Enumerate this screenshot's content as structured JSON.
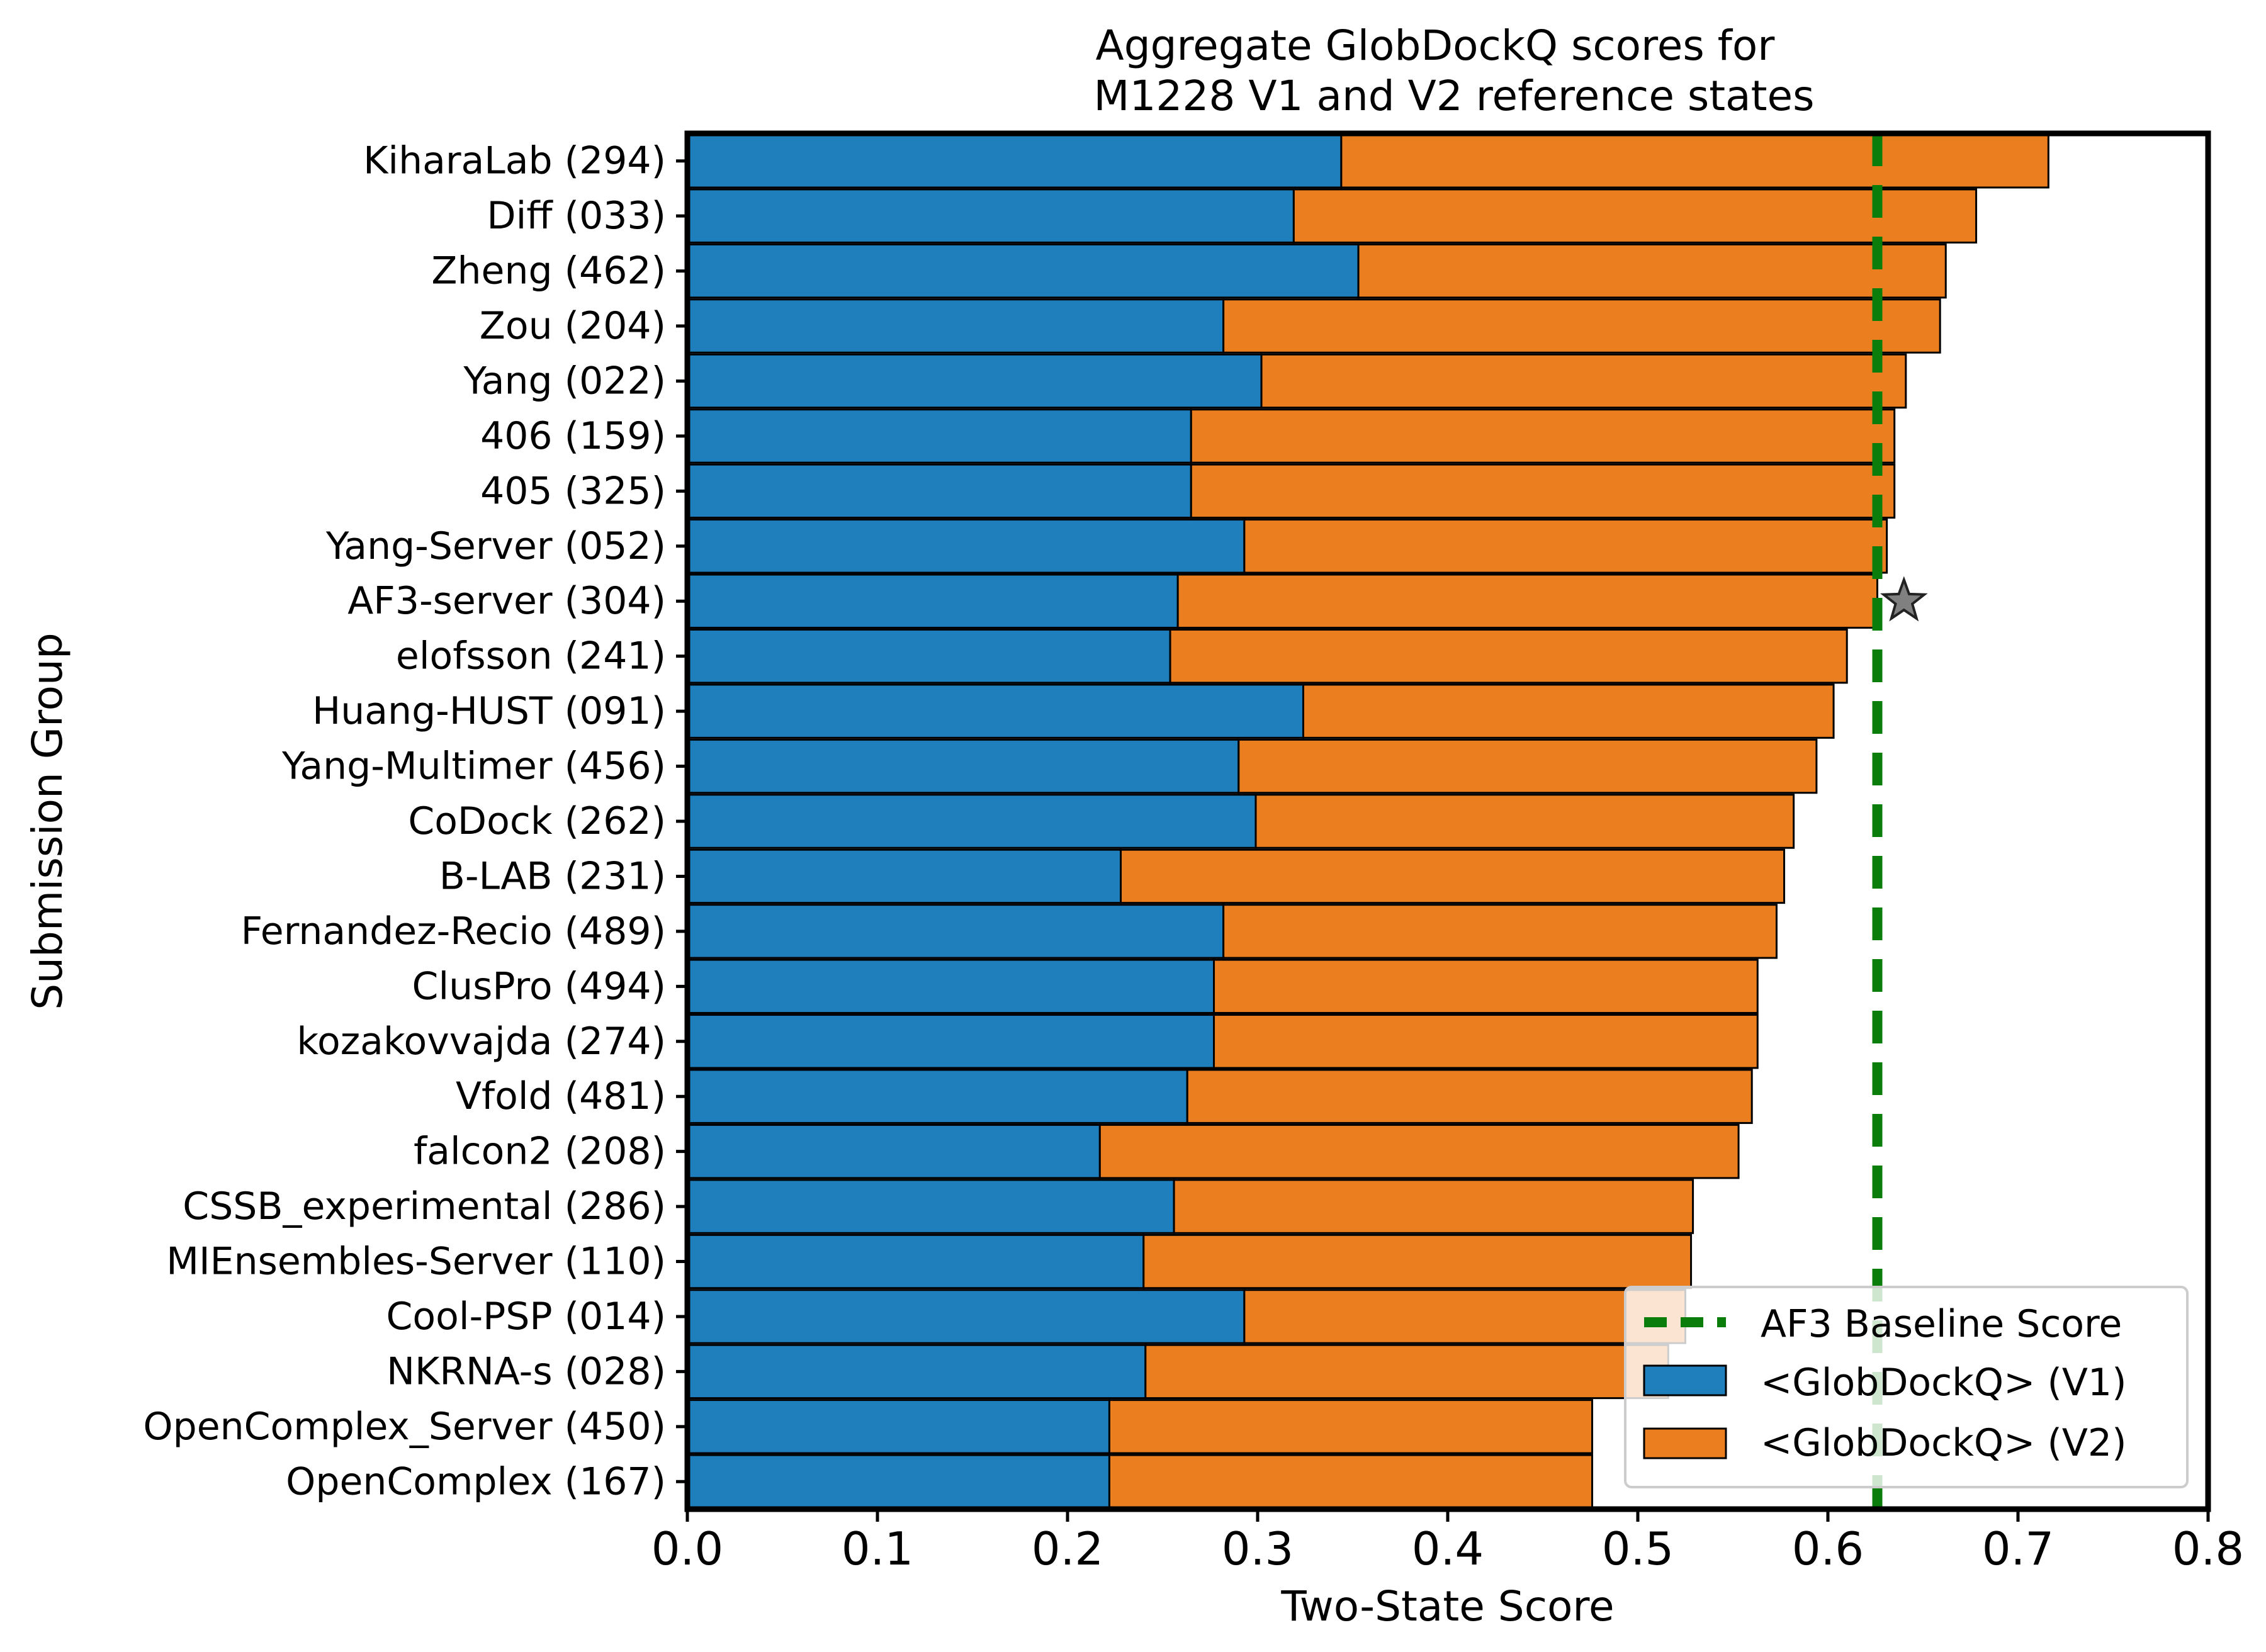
{
  "chart_data": {
    "type": "bar",
    "orientation": "horizontal",
    "stacked": true,
    "title_lines": [
      "Aggregate GlobDockQ scores for",
      "M1228 V1 and V2 reference states"
    ],
    "xlabel": "Two-State Score",
    "ylabel": "Submission Group",
    "xlim": [
      0,
      0.8
    ],
    "xticks": [
      0.0,
      0.1,
      0.2,
      0.3,
      0.4,
      0.5,
      0.6,
      0.7,
      0.8
    ],
    "xtick_labels": [
      "0.0",
      "0.1",
      "0.2",
      "0.3",
      "0.4",
      "0.5",
      "0.6",
      "0.7",
      "0.8"
    ],
    "grid": false,
    "categories": [
      "KiharaLab (294)",
      "Diff (033)",
      "Zheng (462)",
      "Zou (204)",
      "Yang (022)",
      "406 (159)",
      "405 (325)",
      "Yang-Server (052)",
      "AF3-server (304)",
      "elofsson (241)",
      "Huang-HUST (091)",
      "Yang-Multimer (456)",
      "CoDock (262)",
      "B-LAB (231)",
      "Fernandez-Recio (489)",
      "ClusPro (494)",
      "kozakovvajda (274)",
      "Vfold (481)",
      "falcon2 (208)",
      "CSSB_experimental (286)",
      "MIEnsembles-Server (110)",
      "Cool-PSP (014)",
      "NKRNA-s (028)",
      "OpenComplex_Server (450)",
      "OpenComplex (167)"
    ],
    "series": [
      {
        "name": "<GlobDockQ> (V1)",
        "color": "#1f7fbd",
        "values": [
          0.344,
          0.319,
          0.353,
          0.282,
          0.302,
          0.265,
          0.265,
          0.293,
          0.258,
          0.254,
          0.324,
          0.29,
          0.299,
          0.228,
          0.282,
          0.277,
          0.277,
          0.263,
          0.217,
          0.256,
          0.24,
          0.293,
          0.241,
          0.222,
          0.222
        ]
      },
      {
        "name": "<GlobDockQ> (V2)",
        "color": "#eb7f1f",
        "values": [
          0.372,
          0.359,
          0.309,
          0.377,
          0.339,
          0.37,
          0.37,
          0.338,
          0.368,
          0.356,
          0.279,
          0.304,
          0.283,
          0.349,
          0.291,
          0.286,
          0.286,
          0.297,
          0.336,
          0.273,
          0.288,
          0.232,
          0.275,
          0.254,
          0.254
        ]
      }
    ],
    "baseline": {
      "name": "AF3 Baseline Score",
      "value": 0.626,
      "color": "#0a7d0a",
      "style": "dashed"
    },
    "marker": {
      "category": "AF3-server (304)",
      "x": 0.64,
      "symbol": "star",
      "color": "#808080"
    },
    "legend": {
      "position": "lower-right",
      "entries": [
        "AF3 Baseline Score",
        "<GlobDockQ> (V1)",
        "<GlobDockQ> (V2)"
      ]
    }
  }
}
